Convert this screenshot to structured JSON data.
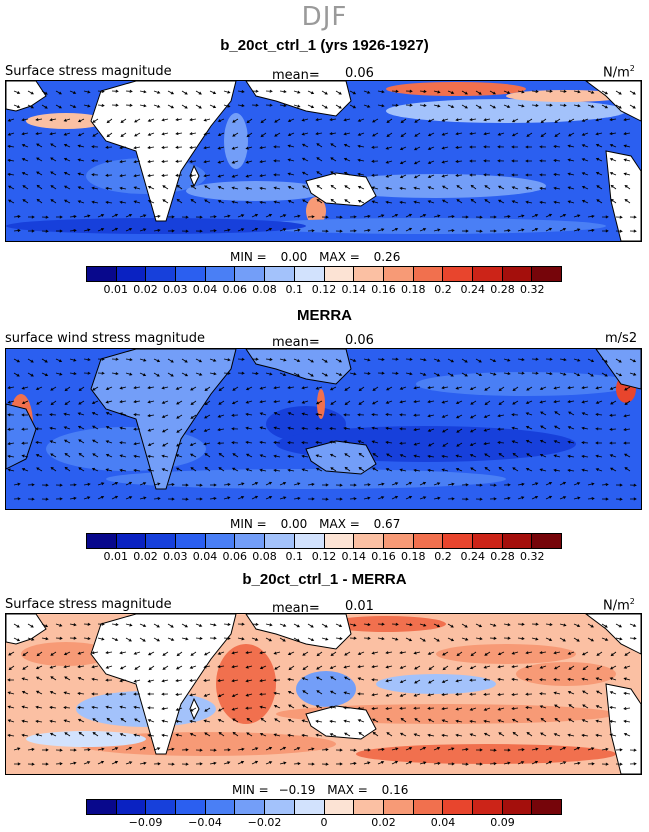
{
  "season": "DJF",
  "units_sup": "2",
  "colorbar_colors": [
    "#08088c",
    "#0a22c2",
    "#1740db",
    "#2b5ff0",
    "#4a7ff5",
    "#739ef8",
    "#a3c2fb",
    "#d2e2fd",
    "#fce3d4",
    "#fbc0a3",
    "#f79a76",
    "#f1704e",
    "#e8452d",
    "#cc2418",
    "#a40f0c",
    "#76050a"
  ],
  "panels": [
    {
      "title": "b_20ct_ctrl_1 (yrs 1926-1927)",
      "left_label": "Surface stress magnitude",
      "mean_label": "mean=",
      "mean_value": "0.06",
      "units": "N/m",
      "min_label": "MIN =",
      "min_value": "0.00",
      "max_label": "MAX =",
      "max_value": "0.26",
      "ticks": [
        "0.01",
        "0.02",
        "0.03",
        "0.04",
        "0.06",
        "0.08",
        "0.1",
        "0.12",
        "0.14",
        "0.16",
        "0.18",
        "0.2",
        "0.24",
        "0.28",
        "0.32"
      ]
    },
    {
      "title": "MERRA",
      "left_label": "surface wind stress magnitude",
      "mean_label": "mean=",
      "mean_value": "0.06",
      "units": "m/s2",
      "min_label": "MIN =",
      "min_value": "0.00",
      "max_label": "MAX =",
      "max_value": "0.67",
      "ticks": [
        "0.01",
        "0.02",
        "0.03",
        "0.04",
        "0.06",
        "0.08",
        "0.1",
        "0.12",
        "0.14",
        "0.16",
        "0.18",
        "0.2",
        "0.24",
        "0.28",
        "0.32"
      ]
    },
    {
      "title": "b_20ct_ctrl_1 - MERRA",
      "left_label": "Surface stress magnitude",
      "mean_label": "mean=",
      "mean_value": "0.01",
      "units": "N/m",
      "min_label": "MIN =",
      "min_value": "−0.19",
      "max_label": "MAX =",
      "max_value": "0.16",
      "ticks": [
        "−0.09",
        "−0.04",
        "−0.02",
        "0",
        "0.02",
        "0.04",
        "0.09"
      ]
    }
  ]
}
